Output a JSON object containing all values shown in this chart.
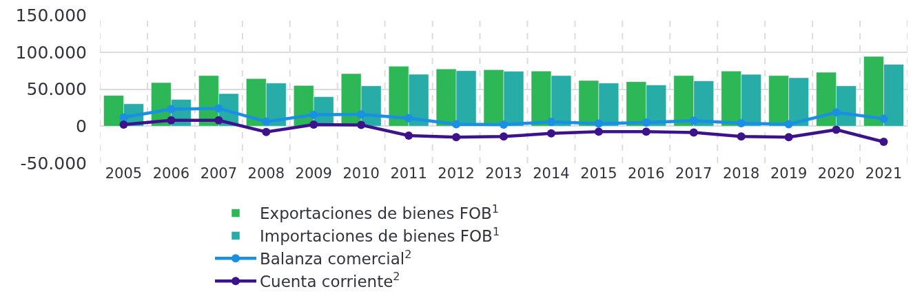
{
  "chart_data": {
    "type": "bar",
    "categories": [
      "2005",
      "2006",
      "2007",
      "2008",
      "2009",
      "2010",
      "2011",
      "2012",
      "2013",
      "2014",
      "2015",
      "2016",
      "2017",
      "2018",
      "2019",
      "2020",
      "2021"
    ],
    "series": [
      {
        "name": "Exportaciones de bienes FOB$^{1}$",
        "color": "#2db757",
        "values": [
          41500,
          58800,
          68300,
          64300,
          55000,
          70900,
          81000,
          77300,
          76200,
          74400,
          61700,
          60100,
          68300,
          74400,
          68300,
          72800,
          94200
        ]
      },
      {
        "name": "Importaciones de bienes FOB$^{1}$",
        "color": "#27aca8",
        "values": [
          30200,
          36000,
          43900,
          58200,
          39700,
          54500,
          70100,
          74900,
          74100,
          68300,
          58200,
          55600,
          61100,
          69900,
          65400,
          54500,
          83600
        ]
      },
      {
        "name": "Balanza comercial$^{2}$",
        "type": "line",
        "color": "#1a8fe3",
        "values": [
          11900,
          23000,
          24000,
          6100,
          15400,
          15900,
          10600,
          2600,
          2100,
          5800,
          3400,
          4800,
          7400,
          4000,
          2600,
          18500,
          10000
        ]
      },
      {
        "name": "Cuenta corriente$^{2}$",
        "type": "line",
        "color": "#3d138c",
        "values": [
          2100,
          7900,
          7900,
          -7900,
          2100,
          1600,
          -12700,
          -14800,
          -14000,
          -9800,
          -7400,
          -7400,
          -8500,
          -14000,
          -14800,
          -4800,
          -21200
        ]
      }
    ],
    "ylim": [
      -50000,
      150000
    ],
    "yticks": [
      {
        "value": -50000,
        "label": "-50.000"
      },
      {
        "value": 0,
        "label": "0"
      },
      {
        "value": 50000,
        "label": "50.000"
      },
      {
        "value": 100000,
        "label": "100.000"
      },
      {
        "value": 150000,
        "label": "150.000"
      }
    ],
    "grid": true,
    "legend": "bottom",
    "marker": "circle",
    "line_style": "solid"
  }
}
